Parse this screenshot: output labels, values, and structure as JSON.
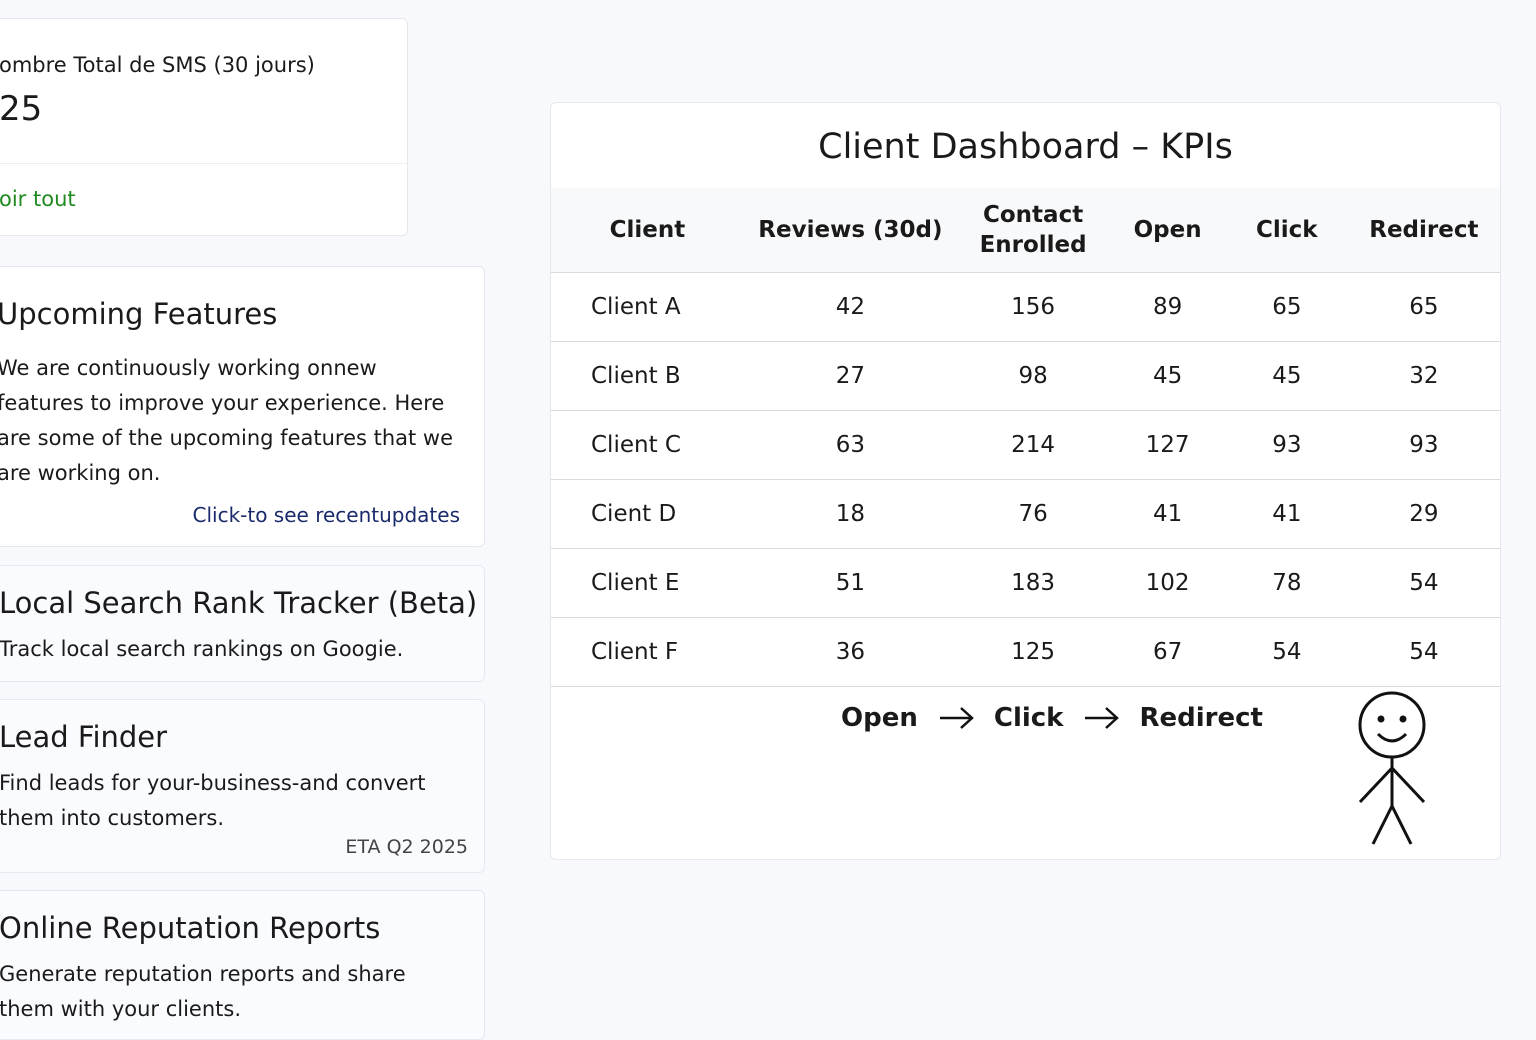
{
  "sms_card": {
    "label": "ombre Total de SMS (30 jours)",
    "value": "25",
    "link": "oir tout"
  },
  "upcoming": {
    "title": "Upcoming Features",
    "text": "We are continuously working onnew features to improve your experience. Here are some of the upcoming features that we are working on.",
    "link": "Click-to see recentupdates"
  },
  "features": [
    {
      "title": "Local Search Rank Tracker (Beta)",
      "desc": "Track local search rankings on Googie."
    },
    {
      "title": "Lead Finder",
      "desc": "Find leads for your-business-and convert them into customers.",
      "eta": "ETA Q2 2025"
    },
    {
      "title": "Online Reputation Reports",
      "desc": "Generate reputation reports and share them with your clients."
    }
  ],
  "dashboard": {
    "title": "Client Dashboard – KPIs",
    "columns": [
      "Client",
      "Reviews (30d)",
      "Contact Enrolled",
      "Open",
      "Click",
      "Redirect"
    ],
    "rows": [
      [
        "Client A",
        42,
        156,
        89,
        65,
        65
      ],
      [
        "Client B",
        27,
        98,
        45,
        45,
        32
      ],
      [
        "Client C",
        63,
        214,
        127,
        93,
        93
      ],
      [
        "Cient D",
        18,
        76,
        41,
        41,
        29
      ],
      [
        "Client E",
        51,
        183,
        102,
        78,
        54
      ],
      [
        "Client F",
        36,
        125,
        67,
        54,
        54
      ]
    ],
    "flow": [
      "Open",
      "Click",
      "Redirect"
    ]
  }
}
